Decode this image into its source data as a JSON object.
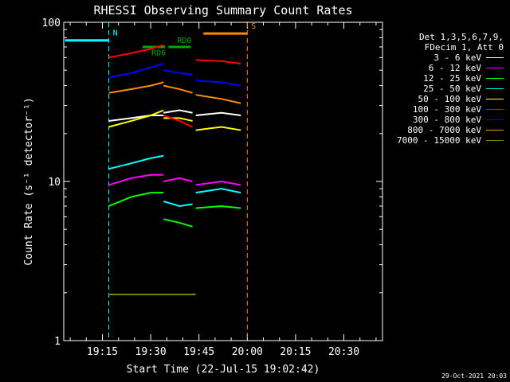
{
  "chart_data": {
    "type": "line",
    "title": "RHESSI Observing Summary Count Rates",
    "xlabel": "Start Time (22-Jul-15 19:02:42)",
    "ylabel": "Count Rate (s⁻¹ detector⁻¹)",
    "y_scale": "log",
    "ylim": [
      1,
      100
    ],
    "xlim": [
      "19:03",
      "20:42"
    ],
    "x_ticks": [
      "19:15",
      "19:30",
      "19:45",
      "20:00",
      "20:15",
      "20:30"
    ],
    "y_ticks": [
      "1",
      "10",
      "100"
    ],
    "legend_header": [
      "Det 1,3,5,6,7,9,",
      "FDecim 1, Att 0"
    ],
    "legend_position": "right",
    "series": [
      {
        "name": "3 - 6 keV",
        "color": "#ffffff",
        "segments": [
          {
            "x": [
              "19:17",
              "19:24",
              "19:30",
              "19:34"
            ],
            "y": [
              24,
              25,
              26,
              26
            ]
          },
          {
            "x": [
              "19:34",
              "19:39",
              "19:43"
            ],
            "y": [
              27,
              28,
              27
            ]
          },
          {
            "x": [
              "19:44",
              "19:52",
              "19:58"
            ],
            "y": [
              26,
              27,
              26
            ]
          }
        ]
      },
      {
        "name": "6 - 12 keV",
        "color": "#ff00ff",
        "segments": [
          {
            "x": [
              "19:17",
              "19:24",
              "19:30",
              "19:34"
            ],
            "y": [
              9.5,
              10.5,
              11,
              11
            ]
          },
          {
            "x": [
              "19:34",
              "19:39",
              "19:43"
            ],
            "y": [
              10,
              10.5,
              10
            ]
          },
          {
            "x": [
              "19:44",
              "19:52",
              "19:58"
            ],
            "y": [
              9.5,
              10,
              9.5
            ]
          }
        ]
      },
      {
        "name": "12 - 25 keV",
        "color": "#00ff00",
        "segments": [
          {
            "x": [
              "19:17",
              "19:24",
              "19:30",
              "19:34"
            ],
            "y": [
              7,
              8,
              8.5,
              8.5
            ]
          },
          {
            "x": [
              "19:34",
              "19:39",
              "19:43"
            ],
            "y": [
              5.8,
              5.5,
              5.2
            ]
          },
          {
            "x": [
              "19:44",
              "19:52",
              "19:58"
            ],
            "y": [
              6.8,
              7,
              6.8
            ]
          }
        ]
      },
      {
        "name": "25 - 50 keV",
        "color": "#00ffff",
        "segments": [
          {
            "x": [
              "19:17",
              "19:24",
              "19:30",
              "19:34"
            ],
            "y": [
              12,
              13,
              14,
              14.5
            ]
          },
          {
            "x": [
              "19:34",
              "19:39",
              "19:43"
            ],
            "y": [
              7.5,
              7,
              7.2
            ]
          },
          {
            "x": [
              "19:44",
              "19:52",
              "19:58"
            ],
            "y": [
              8.5,
              9,
              8.5
            ]
          }
        ]
      },
      {
        "name": "50 - 100 keV",
        "color": "#ffff00",
        "segments": [
          {
            "x": [
              "19:17",
              "19:24",
              "19:30",
              "19:34"
            ],
            "y": [
              22,
              24,
              26,
              28
            ]
          },
          {
            "x": [
              "19:34",
              "19:39",
              "19:43"
            ],
            "y": [
              25,
              25,
              24
            ]
          },
          {
            "x": [
              "19:44",
              "19:52",
              "19:58"
            ],
            "y": [
              21,
              22,
              21
            ]
          }
        ]
      },
      {
        "name": "100 - 300 keV",
        "color": "#ff0000",
        "segments": [
          {
            "x": [
              "19:17",
              "19:24",
              "19:30",
              "19:34"
            ],
            "y": [
              60,
              64,
              68,
              72
            ]
          },
          {
            "x": [
              "19:34",
              "19:39",
              "19:43"
            ],
            "y": [
              26,
              24,
              22
            ]
          },
          {
            "x": [
              "19:44",
              "19:52",
              "19:58"
            ],
            "y": [
              58,
              57,
              55
            ]
          }
        ]
      },
      {
        "name": "300 - 800 keV",
        "color": "#0000ff",
        "segments": [
          {
            "x": [
              "19:17",
              "19:24",
              "19:30",
              "19:34"
            ],
            "y": [
              45,
              48,
              52,
              55
            ]
          },
          {
            "x": [
              "19:34",
              "19:39",
              "19:43"
            ],
            "y": [
              50,
              48,
              47
            ]
          },
          {
            "x": [
              "19:44",
              "19:52",
              "19:58"
            ],
            "y": [
              43,
              42,
              40
            ]
          }
        ]
      },
      {
        "name": "800 - 7000 keV",
        "color": "#ff8c00",
        "segments": [
          {
            "x": [
              "19:17",
              "19:24",
              "19:30",
              "19:34"
            ],
            "y": [
              36,
              38,
              40,
              42
            ]
          },
          {
            "x": [
              "19:34",
              "19:39",
              "19:43"
            ],
            "y": [
              40,
              38,
              36
            ]
          },
          {
            "x": [
              "19:44",
              "19:52",
              "19:58"
            ],
            "y": [
              35,
              33,
              31
            ]
          }
        ]
      },
      {
        "name": "7000 - 15000 keV",
        "color": "#808000",
        "segments": [
          {
            "x": [
              "19:17",
              "19:44"
            ],
            "y": [
              1.95,
              1.95
            ]
          }
        ]
      }
    ],
    "annotations": [
      {
        "text": "N",
        "color": "#00ffff",
        "x": "19:17"
      },
      {
        "text": "S",
        "color": "#ff8c00",
        "x": "20:00"
      },
      {
        "text": "RD6",
        "color": "#00aa00",
        "x": "19:29"
      },
      {
        "text": "RD0",
        "color": "#00aa00",
        "x": "19:37"
      }
    ]
  },
  "timestamp": "29-Oct-2021 20:03"
}
